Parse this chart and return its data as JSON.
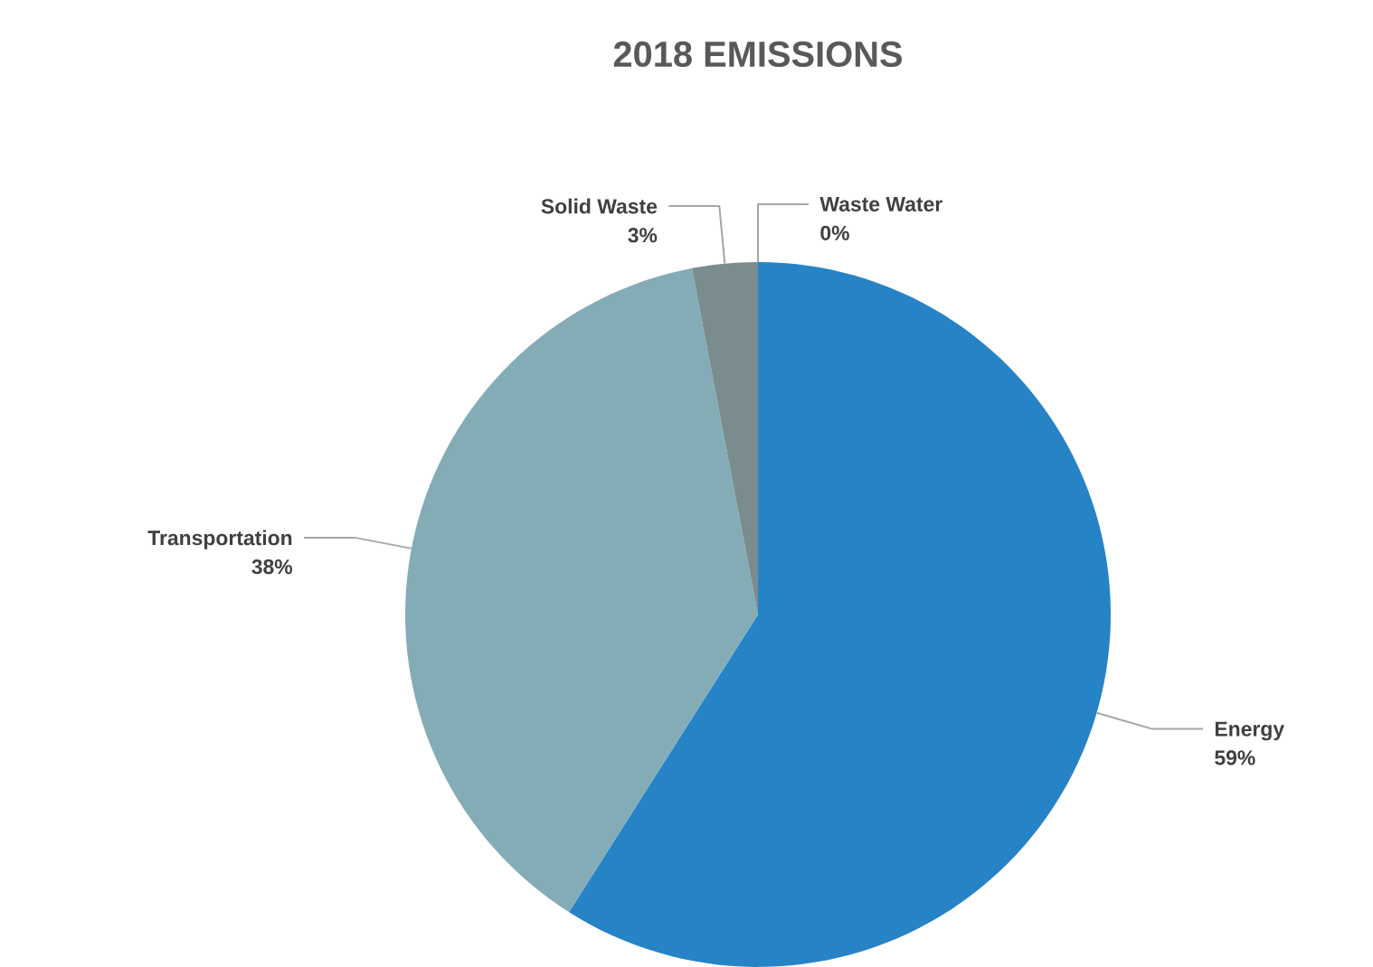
{
  "chart_data": {
    "type": "pie",
    "title": "2018 EMISSIONS",
    "categories": [
      "Energy",
      "Transportation",
      "Solid Waste",
      "Waste Water"
    ],
    "values": [
      59,
      38,
      3,
      0
    ],
    "value_labels": [
      "59%",
      "38%",
      "3%",
      "0%"
    ],
    "colors": [
      "#2683c6",
      "#84acb6",
      "#7a8c8e",
      "#5f7a7e"
    ]
  }
}
